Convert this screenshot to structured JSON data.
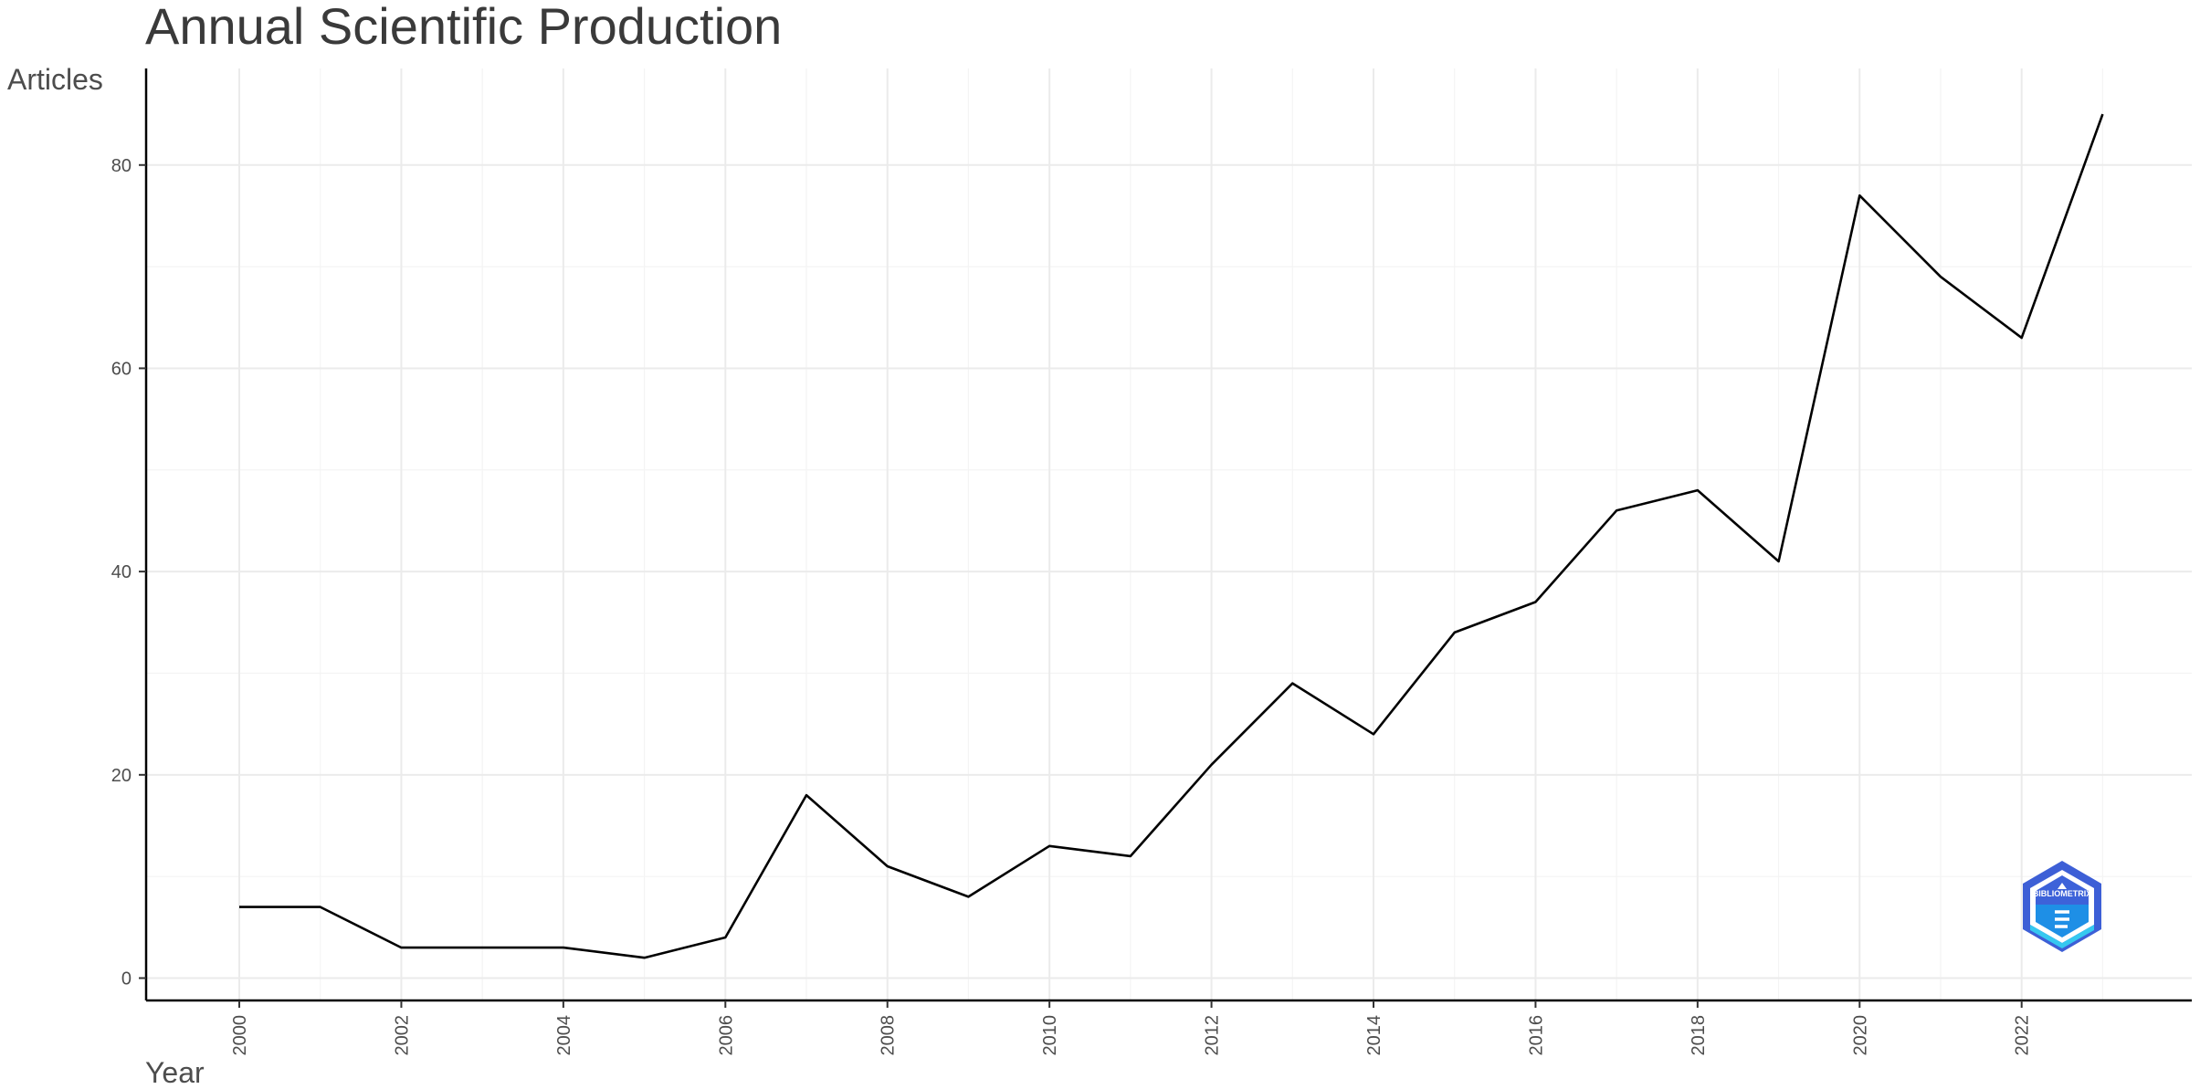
{
  "chart_data": {
    "type": "line",
    "title": "Annual Scientific Production",
    "xlabel": "Year",
    "ylabel": "Articles",
    "x": [
      2000,
      2001,
      2002,
      2003,
      2004,
      2005,
      2006,
      2007,
      2008,
      2009,
      2010,
      2011,
      2012,
      2013,
      2014,
      2015,
      2016,
      2017,
      2018,
      2019,
      2020,
      2021,
      2022,
      2023
    ],
    "series": [
      {
        "values": [
          7,
          7,
          3,
          3,
          3,
          2,
          4,
          18,
          11,
          8,
          13,
          12,
          21,
          29,
          24,
          34,
          37,
          46,
          48,
          41,
          77,
          69,
          63,
          85
        ]
      }
    ],
    "x_ticks": [
      "2000",
      "2002",
      "2004",
      "2006",
      "2008",
      "2010",
      "2012",
      "2014",
      "2016",
      "2018",
      "2020",
      "2022"
    ],
    "y_ticks": [
      "0",
      "20",
      "40",
      "60",
      "80"
    ],
    "xlim": [
      1998.85,
      2024.1
    ],
    "ylim": [
      -2.2,
      89.5
    ],
    "grid": true,
    "legend": "none",
    "line_color": "#000000",
    "logo": {
      "text": "BIBLIOMETRIX",
      "colors": [
        "#3d5fd6",
        "#1e90e8",
        "#35c8f0"
      ]
    }
  }
}
